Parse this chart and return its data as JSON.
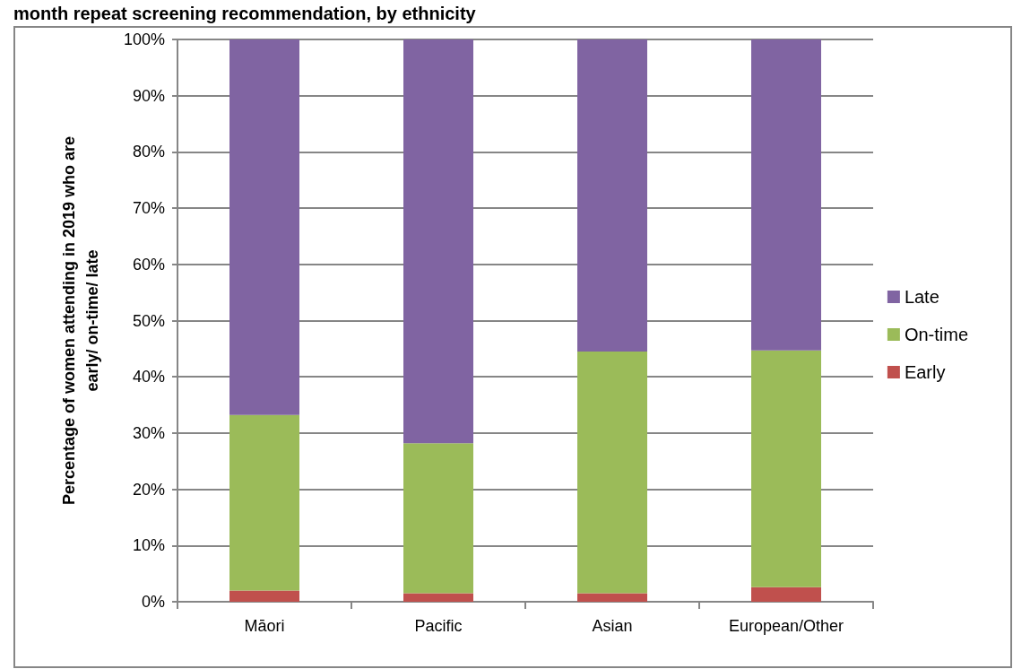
{
  "chart_data": {
    "type": "bar",
    "stacked": true,
    "title": "month repeat screening recommendation, by ethnicity",
    "ylabel": "Percentage of women attending in 2019 who are\nearly/ on-time/ late",
    "categories": [
      "Māori",
      "Pacific",
      "Asian",
      "European/Other"
    ],
    "series": [
      {
        "name": "Early",
        "color": "#c0504d",
        "values": [
          2.0,
          1.5,
          1.5,
          2.6
        ]
      },
      {
        "name": "On-time",
        "color": "#9bbb59",
        "values": [
          31.2,
          26.7,
          43.0,
          42.1
        ]
      },
      {
        "name": "Late",
        "color": "#8064a2",
        "values": [
          66.8,
          71.8,
          55.5,
          55.3
        ]
      }
    ],
    "ylim": [
      0,
      100
    ],
    "yticks": [
      {
        "value": 0,
        "label": "0%"
      },
      {
        "value": 10,
        "label": "10%"
      },
      {
        "value": 20,
        "label": "20%"
      },
      {
        "value": 30,
        "label": "30%"
      },
      {
        "value": 40,
        "label": "40%"
      },
      {
        "value": 50,
        "label": "50%"
      },
      {
        "value": 60,
        "label": "60%"
      },
      {
        "value": 70,
        "label": "70%"
      },
      {
        "value": 80,
        "label": "80%"
      },
      {
        "value": 90,
        "label": "90%"
      },
      {
        "value": 100,
        "label": "100%"
      }
    ],
    "grid": "y",
    "legend": "right"
  }
}
